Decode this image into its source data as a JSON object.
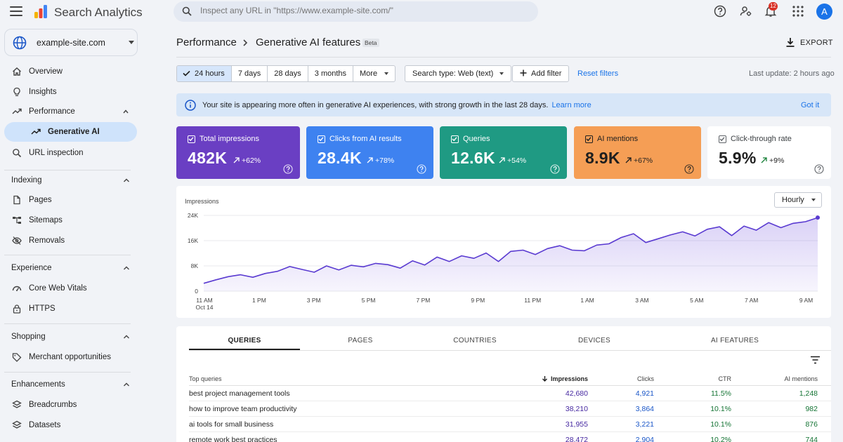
{
  "app": {
    "title": "Search Analytics",
    "search_placeholder": "Inspect any URL in \"https://www.example-site.com/\"",
    "notification_count": "12",
    "avatar_initial": "A"
  },
  "sidebar": {
    "property": "example-site.com",
    "top_items": [
      {
        "label": "Overview",
        "icon": "home-icon"
      },
      {
        "label": "Insights",
        "icon": "lightbulb-icon"
      },
      {
        "label": "Performance",
        "icon": "trending-up-icon"
      },
      {
        "label": "Generative AI",
        "icon": "trending-up-icon"
      },
      {
        "label": "URL inspection",
        "icon": "search-icon"
      }
    ],
    "sections": [
      {
        "title": "Indexing",
        "items": [
          {
            "label": "Pages",
            "icon": "pages-icon"
          },
          {
            "label": "Sitemaps",
            "icon": "sitemap-icon"
          },
          {
            "label": "Removals",
            "icon": "removal-icon"
          }
        ]
      },
      {
        "title": "Experience",
        "items": [
          {
            "label": "Core Web Vitals",
            "icon": "gauge-icon"
          },
          {
            "label": "HTTPS",
            "icon": "lock-icon"
          }
        ]
      },
      {
        "title": "Shopping",
        "items": [
          {
            "label": "Merchant opportunities",
            "icon": "tag-icon"
          }
        ]
      },
      {
        "title": "Enhancements",
        "items": [
          {
            "label": "Breadcrumbs",
            "icon": "layers-icon"
          },
          {
            "label": "Datasets",
            "icon": "layers-icon"
          }
        ]
      }
    ]
  },
  "header": {
    "crumb_parent": "Performance",
    "crumb_current": "Generative AI features",
    "beta": "Beta",
    "export": "EXPORT"
  },
  "filters": {
    "ranges": [
      "24 hours",
      "7 days",
      "28 days",
      "3 months",
      "More"
    ],
    "selected_range": "24 hours",
    "search_type": "Search type: Web (text)",
    "add_filter": "Add filter",
    "reset": "Reset filters",
    "last_update": "Last update: 2 hours ago"
  },
  "banner": {
    "message": "Your site is appearing more often in generative AI experiences, with strong growth in the last 28 days.",
    "learn_more": "Learn more",
    "dismiss": "Got it"
  },
  "metrics": [
    {
      "label": "Total impressions",
      "value": "482K",
      "delta": "+62%",
      "color": "#6a3fc3",
      "selected": true
    },
    {
      "label": "Clicks from AI results",
      "value": "28.4K",
      "delta": "+78%",
      "color": "#3e82f0",
      "selected": true
    },
    {
      "label": "Queries",
      "value": "12.6K",
      "delta": "+54%",
      "color": "#1f9a83",
      "selected": true
    },
    {
      "label": "AI mentions",
      "value": "8.9K",
      "delta": "+67%",
      "color": "#f59e55",
      "selected": true
    },
    {
      "label": "Click-through rate",
      "value": "5.9%",
      "delta": "+9%",
      "color": "#ffffff",
      "selected": false
    }
  ],
  "chart_control": "Hourly",
  "chart_data": {
    "type": "area",
    "ylabel": "Impressions",
    "ylim": [
      0,
      24000
    ],
    "yticks": [
      "0",
      "8K",
      "16K",
      "24K"
    ],
    "ytick_values": [
      0,
      8000,
      16000,
      24000
    ],
    "xticks": [
      "11 AM",
      "1 PM",
      "3 PM",
      "5 PM",
      "7 PM",
      "9 PM",
      "11 PM",
      "1 AM",
      "3 AM",
      "5 AM",
      "7 AM",
      "9 AM"
    ],
    "xtick_sub": "Oct 14",
    "series": [
      {
        "name": "Impressions",
        "color": "#5a3bd1",
        "values": [
          2500,
          3600,
          4600,
          5200,
          4400,
          5600,
          6300,
          7800,
          6900,
          6000,
          8000,
          6700,
          8200,
          7700,
          8800,
          8400,
          7300,
          9600,
          8300,
          10800,
          9400,
          11200,
          10400,
          12100,
          9400,
          12600,
          13000,
          11600,
          13500,
          14400,
          13000,
          12800,
          14600,
          15000,
          17000,
          18200,
          15400,
          16600,
          17800,
          18800,
          17500,
          19600,
          20400,
          17600,
          20600,
          19300,
          21700,
          20100,
          21500,
          22000,
          23300
        ]
      }
    ]
  },
  "table": {
    "tabs": [
      "QUERIES",
      "PAGES",
      "COUNTRIES",
      "DEVICES",
      "AI FEATURES"
    ],
    "headers": {
      "query": "Top queries",
      "impressions": "Impressions",
      "clicks": "Clicks",
      "ctr": "CTR",
      "ai": "AI mentions"
    },
    "rows": [
      {
        "query": "best project management tools",
        "impressions": "42,680",
        "clicks": "4,921",
        "ctr": "11.5%",
        "ai": "1,248"
      },
      {
        "query": "how to improve team productivity",
        "impressions": "38,210",
        "clicks": "3,864",
        "ctr": "10.1%",
        "ai": "982"
      },
      {
        "query": "ai tools for small business",
        "impressions": "31,955",
        "clicks": "3,221",
        "ctr": "10.1%",
        "ai": "876"
      },
      {
        "query": "remote work best practices",
        "impressions": "28,472",
        "clicks": "2,904",
        "ctr": "10.2%",
        "ai": "744"
      }
    ]
  }
}
